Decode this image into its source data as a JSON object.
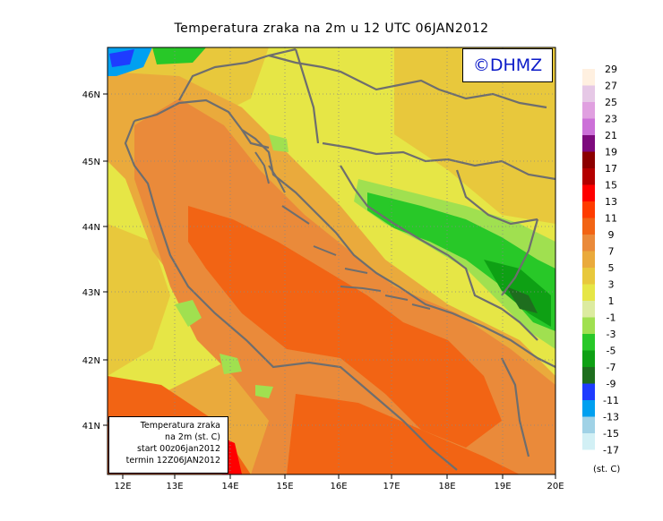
{
  "title": "Temperatura zraka na 2m u 12 UTC 06JAN2012",
  "logo_text": "©DHMZ",
  "info_box": {
    "line1": "Temperatura zraka",
    "line2": "na 2m (st. C)",
    "line3": "start 00z06jan2012",
    "line4": "termin 12Z06JAN2012"
  },
  "axes": {
    "lat_labels": [
      "46N",
      "45N",
      "44N",
      "43N",
      "42N",
      "41N"
    ],
    "lon_labels": [
      "12E",
      "13E",
      "14E",
      "15E",
      "16E",
      "17E",
      "18E",
      "19E",
      "20E"
    ]
  },
  "legend": {
    "unit": "(st. C)",
    "bins": [
      {
        "label": "29",
        "color": "#fff0e0"
      },
      {
        "label": "27",
        "color": "#e6c8e6"
      },
      {
        "label": "25",
        "color": "#e0a0e0"
      },
      {
        "label": "23",
        "color": "#cc70d8"
      },
      {
        "label": "21",
        "color": "#7d0a7d"
      },
      {
        "label": "19",
        "color": "#8c0000"
      },
      {
        "label": "17",
        "color": "#b40000"
      },
      {
        "label": "15",
        "color": "#ff0000"
      },
      {
        "label": "13",
        "color": "#ff3c00"
      },
      {
        "label": "11",
        "color": "#f26414"
      },
      {
        "label": "9",
        "color": "#ea8a3a"
      },
      {
        "label": "7",
        "color": "#eaaa3c"
      },
      {
        "label": "5",
        "color": "#e8c83c"
      },
      {
        "label": "3",
        "color": "#e6e646"
      },
      {
        "label": "1",
        "color": "#dceba0"
      },
      {
        "label": "-1",
        "color": "#a0e050"
      },
      {
        "label": "-3",
        "color": "#28c828"
      },
      {
        "label": "-5",
        "color": "#0ea014"
      },
      {
        "label": "-7",
        "color": "#1e6e1e"
      },
      {
        "label": "-9",
        "color": "#1e3cff"
      },
      {
        "label": "-11",
        "color": "#00a0f0"
      },
      {
        "label": "-13",
        "color": "#a0d2e6"
      },
      {
        "label": "-15",
        "color": "#d2f0f5"
      },
      {
        "label": "-17",
        "color": "#ffffff"
      }
    ]
  },
  "colors": {
    "sea_warm": "#f26414",
    "sea": "#ea8a3a",
    "coast": "#eaaa3c",
    "land_yellow": "#e8c83c",
    "land_light": "#e6e646",
    "border": "#6e6e6e"
  }
}
